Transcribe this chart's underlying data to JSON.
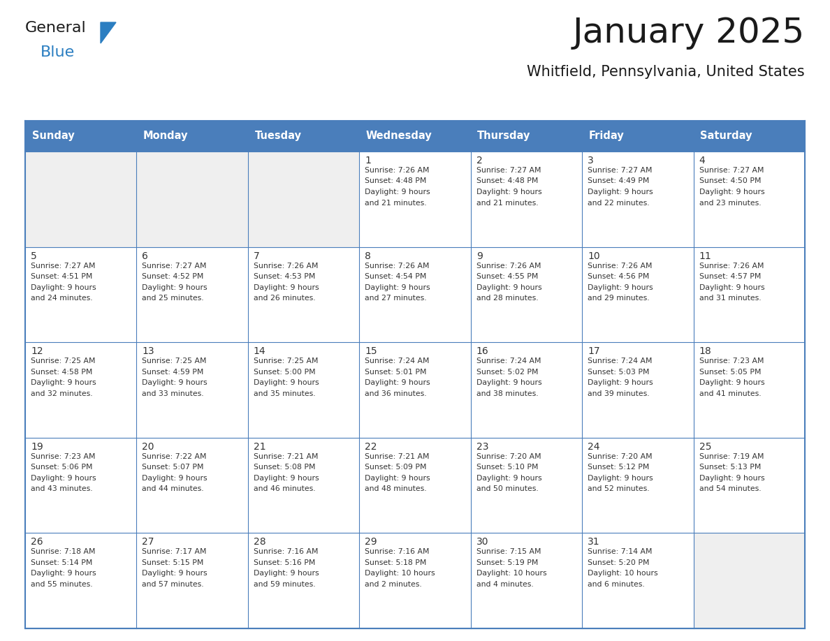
{
  "title": "January 2025",
  "subtitle": "Whitfield, Pennsylvania, United States",
  "days_of_week": [
    "Sunday",
    "Monday",
    "Tuesday",
    "Wednesday",
    "Thursday",
    "Friday",
    "Saturday"
  ],
  "header_bg": "#4a7ebb",
  "header_text": "#FFFFFF",
  "cell_bg_white": "#FFFFFF",
  "cell_bg_gray": "#EFEFEF",
  "border_color": "#4a7ebb",
  "title_color": "#1a1a1a",
  "subtitle_color": "#1a1a1a",
  "text_color": "#333333",
  "logo_general_color": "#1a1a1a",
  "logo_blue_color": "#2B7EC1",
  "logo_triangle_color": "#2B7EC1",
  "calendar": [
    [
      {
        "day": null,
        "sunrise": null,
        "sunset": null,
        "daylight": null
      },
      {
        "day": null,
        "sunrise": null,
        "sunset": null,
        "daylight": null
      },
      {
        "day": null,
        "sunrise": null,
        "sunset": null,
        "daylight": null
      },
      {
        "day": 1,
        "sunrise": "7:26 AM",
        "sunset": "4:48 PM",
        "daylight": "9 hours",
        "daylight2": "and 21 minutes."
      },
      {
        "day": 2,
        "sunrise": "7:27 AM",
        "sunset": "4:48 PM",
        "daylight": "9 hours",
        "daylight2": "and 21 minutes."
      },
      {
        "day": 3,
        "sunrise": "7:27 AM",
        "sunset": "4:49 PM",
        "daylight": "9 hours",
        "daylight2": "and 22 minutes."
      },
      {
        "day": 4,
        "sunrise": "7:27 AM",
        "sunset": "4:50 PM",
        "daylight": "9 hours",
        "daylight2": "and 23 minutes."
      }
    ],
    [
      {
        "day": 5,
        "sunrise": "7:27 AM",
        "sunset": "4:51 PM",
        "daylight": "9 hours",
        "daylight2": "and 24 minutes."
      },
      {
        "day": 6,
        "sunrise": "7:27 AM",
        "sunset": "4:52 PM",
        "daylight": "9 hours",
        "daylight2": "and 25 minutes."
      },
      {
        "day": 7,
        "sunrise": "7:26 AM",
        "sunset": "4:53 PM",
        "daylight": "9 hours",
        "daylight2": "and 26 minutes."
      },
      {
        "day": 8,
        "sunrise": "7:26 AM",
        "sunset": "4:54 PM",
        "daylight": "9 hours",
        "daylight2": "and 27 minutes."
      },
      {
        "day": 9,
        "sunrise": "7:26 AM",
        "sunset": "4:55 PM",
        "daylight": "9 hours",
        "daylight2": "and 28 minutes."
      },
      {
        "day": 10,
        "sunrise": "7:26 AM",
        "sunset": "4:56 PM",
        "daylight": "9 hours",
        "daylight2": "and 29 minutes."
      },
      {
        "day": 11,
        "sunrise": "7:26 AM",
        "sunset": "4:57 PM",
        "daylight": "9 hours",
        "daylight2": "and 31 minutes."
      }
    ],
    [
      {
        "day": 12,
        "sunrise": "7:25 AM",
        "sunset": "4:58 PM",
        "daylight": "9 hours",
        "daylight2": "and 32 minutes."
      },
      {
        "day": 13,
        "sunrise": "7:25 AM",
        "sunset": "4:59 PM",
        "daylight": "9 hours",
        "daylight2": "and 33 minutes."
      },
      {
        "day": 14,
        "sunrise": "7:25 AM",
        "sunset": "5:00 PM",
        "daylight": "9 hours",
        "daylight2": "and 35 minutes."
      },
      {
        "day": 15,
        "sunrise": "7:24 AM",
        "sunset": "5:01 PM",
        "daylight": "9 hours",
        "daylight2": "and 36 minutes."
      },
      {
        "day": 16,
        "sunrise": "7:24 AM",
        "sunset": "5:02 PM",
        "daylight": "9 hours",
        "daylight2": "and 38 minutes."
      },
      {
        "day": 17,
        "sunrise": "7:24 AM",
        "sunset": "5:03 PM",
        "daylight": "9 hours",
        "daylight2": "and 39 minutes."
      },
      {
        "day": 18,
        "sunrise": "7:23 AM",
        "sunset": "5:05 PM",
        "daylight": "9 hours",
        "daylight2": "and 41 minutes."
      }
    ],
    [
      {
        "day": 19,
        "sunrise": "7:23 AM",
        "sunset": "5:06 PM",
        "daylight": "9 hours",
        "daylight2": "and 43 minutes."
      },
      {
        "day": 20,
        "sunrise": "7:22 AM",
        "sunset": "5:07 PM",
        "daylight": "9 hours",
        "daylight2": "and 44 minutes."
      },
      {
        "day": 21,
        "sunrise": "7:21 AM",
        "sunset": "5:08 PM",
        "daylight": "9 hours",
        "daylight2": "and 46 minutes."
      },
      {
        "day": 22,
        "sunrise": "7:21 AM",
        "sunset": "5:09 PM",
        "daylight": "9 hours",
        "daylight2": "and 48 minutes."
      },
      {
        "day": 23,
        "sunrise": "7:20 AM",
        "sunset": "5:10 PM",
        "daylight": "9 hours",
        "daylight2": "and 50 minutes."
      },
      {
        "day": 24,
        "sunrise": "7:20 AM",
        "sunset": "5:12 PM",
        "daylight": "9 hours",
        "daylight2": "and 52 minutes."
      },
      {
        "day": 25,
        "sunrise": "7:19 AM",
        "sunset": "5:13 PM",
        "daylight": "9 hours",
        "daylight2": "and 54 minutes."
      }
    ],
    [
      {
        "day": 26,
        "sunrise": "7:18 AM",
        "sunset": "5:14 PM",
        "daylight": "9 hours",
        "daylight2": "and 55 minutes."
      },
      {
        "day": 27,
        "sunrise": "7:17 AM",
        "sunset": "5:15 PM",
        "daylight": "9 hours",
        "daylight2": "and 57 minutes."
      },
      {
        "day": 28,
        "sunrise": "7:16 AM",
        "sunset": "5:16 PM",
        "daylight": "9 hours",
        "daylight2": "and 59 minutes."
      },
      {
        "day": 29,
        "sunrise": "7:16 AM",
        "sunset": "5:18 PM",
        "daylight": "10 hours",
        "daylight2": "and 2 minutes."
      },
      {
        "day": 30,
        "sunrise": "7:15 AM",
        "sunset": "5:19 PM",
        "daylight": "10 hours",
        "daylight2": "and 4 minutes."
      },
      {
        "day": 31,
        "sunrise": "7:14 AM",
        "sunset": "5:20 PM",
        "daylight": "10 hours",
        "daylight2": "and 6 minutes."
      },
      {
        "day": null,
        "sunrise": null,
        "sunset": null,
        "daylight": null,
        "daylight2": null
      }
    ]
  ]
}
